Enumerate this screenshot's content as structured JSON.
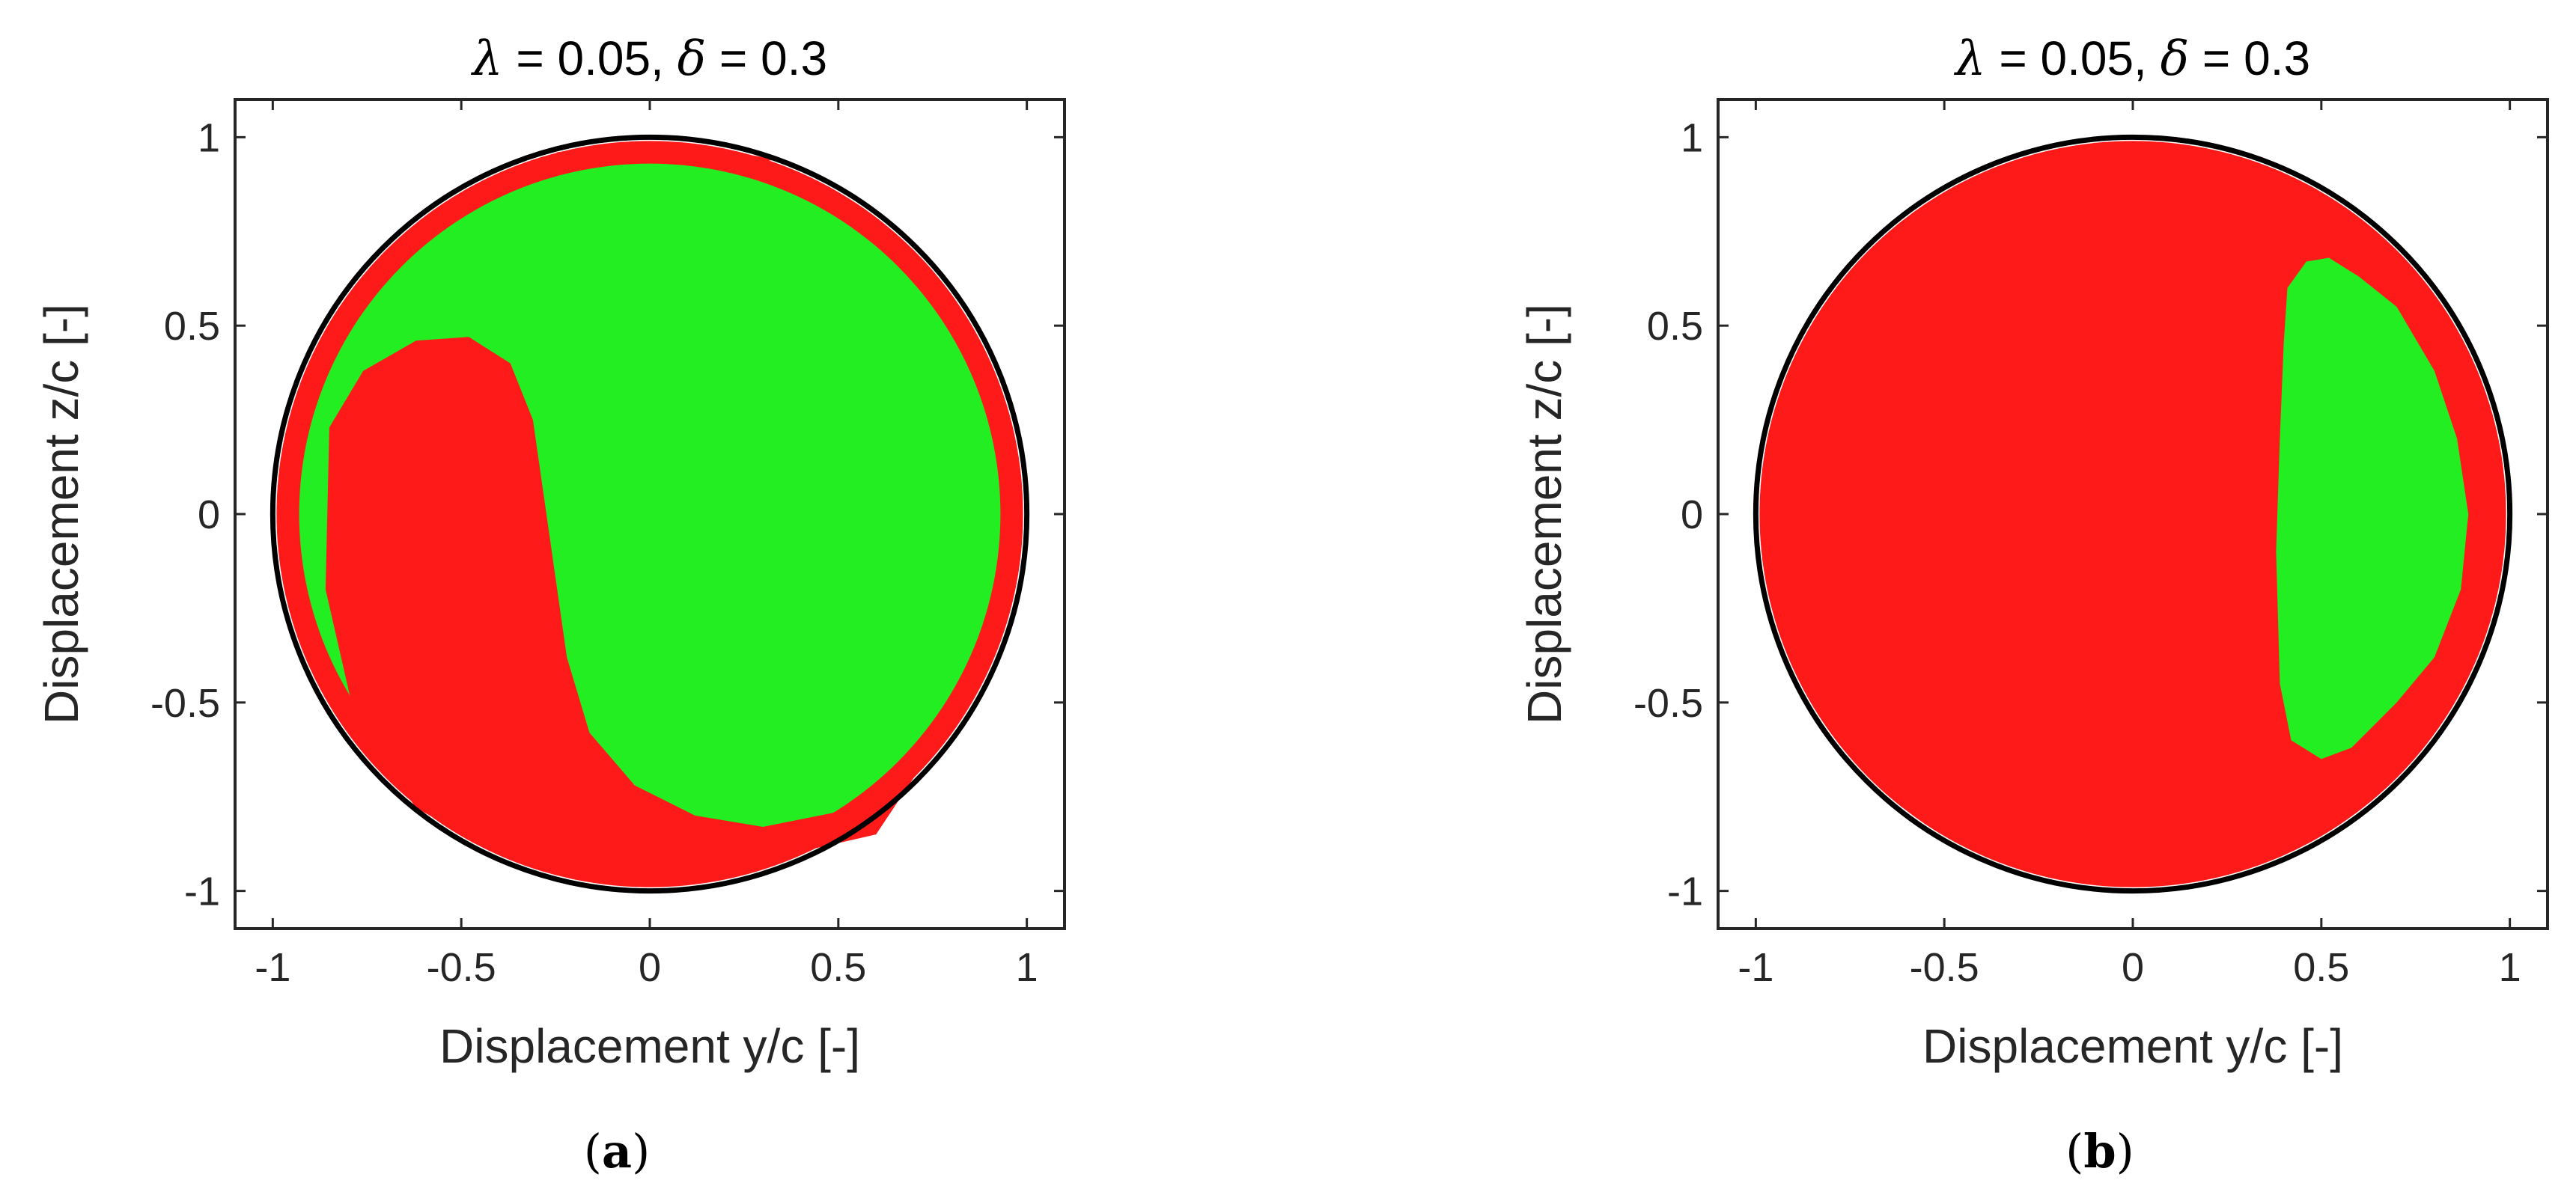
{
  "chart_data": [
    {
      "type": "scatter",
      "panel": "a",
      "title_parts": {
        "lambda_symbol": "λ",
        "lambda_text": " = 0.05, ",
        "delta_symbol": "δ",
        "delta_text": "  = 0.3"
      },
      "xlabel": "Displacement  y/c [-]",
      "ylabel": "Displacement  z/c [-]",
      "xlim": [
        -1.1,
        1.1
      ],
      "ylim": [
        -1.1,
        1.1
      ],
      "xticks": [
        -1,
        -0.5,
        0,
        0.5,
        1
      ],
      "xtick_labels": [
        "-1",
        "-0.5",
        "0",
        "0.5",
        "1"
      ],
      "yticks": [
        -1,
        -0.5,
        0,
        0.5,
        1
      ],
      "ytick_labels": [
        "-1",
        "-0.5",
        "0",
        "0.5",
        "1"
      ],
      "boundary_circle": {
        "cx": 0,
        "cy": 0,
        "r": 1
      },
      "grid": false,
      "caption": {
        "open": "(",
        "letter": "a",
        "close": ")"
      },
      "colors": {
        "red": "#ff1a1a",
        "green": "#22ee22",
        "circle": "#000000"
      },
      "regions": [
        {
          "color": "red",
          "shape": "disk",
          "r": 0.99
        },
        {
          "color": "green",
          "shape": "disk",
          "r": 0.93
        },
        {
          "color": "red",
          "shape": "polygon",
          "points": [
            [
              -0.85,
              0.23
            ],
            [
              -0.76,
              0.38
            ],
            [
              -0.62,
              0.46
            ],
            [
              -0.48,
              0.47
            ],
            [
              -0.37,
              0.4
            ],
            [
              -0.31,
              0.25
            ],
            [
              -0.26,
              -0.1
            ],
            [
              -0.22,
              -0.38
            ],
            [
              -0.16,
              -0.58
            ],
            [
              -0.04,
              -0.72
            ],
            [
              0.12,
              -0.8
            ],
            [
              0.3,
              -0.83
            ],
            [
              0.5,
              -0.79
            ],
            [
              0.7,
              -0.7
            ],
            [
              0.6,
              -0.85
            ],
            [
              0.25,
              -0.93
            ],
            [
              -0.1,
              -0.95
            ],
            [
              -0.4,
              -0.9
            ],
            [
              -0.62,
              -0.78
            ],
            [
              -0.78,
              -0.55
            ],
            [
              -0.86,
              -0.2
            ]
          ]
        },
        {
          "color": "red",
          "shape": "polygon",
          "points": [
            [
              -0.82,
              0.55
            ],
            [
              -0.65,
              0.73
            ],
            [
              -0.45,
              0.88
            ],
            [
              -0.2,
              0.97
            ],
            [
              -0.42,
              0.86
            ],
            [
              -0.62,
              0.72
            ],
            [
              -0.78,
              0.55
            ]
          ]
        },
        {
          "color": "red",
          "shape": "polygon",
          "points": [
            [
              -0.25,
              0.96
            ],
            [
              0.05,
              0.985
            ],
            [
              0.35,
              0.94
            ],
            [
              0.15,
              0.93
            ],
            [
              -0.1,
              0.94
            ]
          ]
        }
      ]
    },
    {
      "type": "scatter",
      "panel": "b",
      "title_parts": {
        "lambda_symbol": "λ",
        "lambda_text": " = 0.05, ",
        "delta_symbol": "δ",
        "delta_text": "  = 0.3"
      },
      "xlabel": "Displacement  y/c [-]",
      "ylabel": "Displacement  z/c [-]",
      "xlim": [
        -1.1,
        1.1
      ],
      "ylim": [
        -1.1,
        1.1
      ],
      "xticks": [
        -1,
        -0.5,
        0,
        0.5,
        1
      ],
      "xtick_labels": [
        "-1",
        "-0.5",
        "0",
        "0.5",
        "1"
      ],
      "yticks": [
        -1,
        -0.5,
        0,
        0.5,
        1
      ],
      "ytick_labels": [
        "-1",
        "-0.5",
        "0",
        "0.5",
        "1"
      ],
      "boundary_circle": {
        "cx": 0,
        "cy": 0,
        "r": 1
      },
      "grid": false,
      "caption": {
        "open": "(",
        "letter": "b",
        "close": ")"
      },
      "colors": {
        "red": "#ff1a1a",
        "green": "#22ee22",
        "circle": "#000000"
      },
      "regions": [
        {
          "color": "red",
          "shape": "disk",
          "r": 0.99
        },
        {
          "color": "green",
          "shape": "polygon",
          "points": [
            [
              0.41,
              0.6
            ],
            [
              0.46,
              0.67
            ],
            [
              0.52,
              0.68
            ],
            [
              0.6,
              0.63
            ],
            [
              0.7,
              0.55
            ],
            [
              0.8,
              0.38
            ],
            [
              0.86,
              0.2
            ],
            [
              0.89,
              0.0
            ],
            [
              0.87,
              -0.2
            ],
            [
              0.8,
              -0.38
            ],
            [
              0.7,
              -0.5
            ],
            [
              0.58,
              -0.62
            ],
            [
              0.5,
              -0.65
            ],
            [
              0.42,
              -0.6
            ],
            [
              0.39,
              -0.45
            ],
            [
              0.38,
              -0.1
            ],
            [
              0.39,
              0.2
            ],
            [
              0.4,
              0.45
            ]
          ]
        }
      ]
    }
  ]
}
